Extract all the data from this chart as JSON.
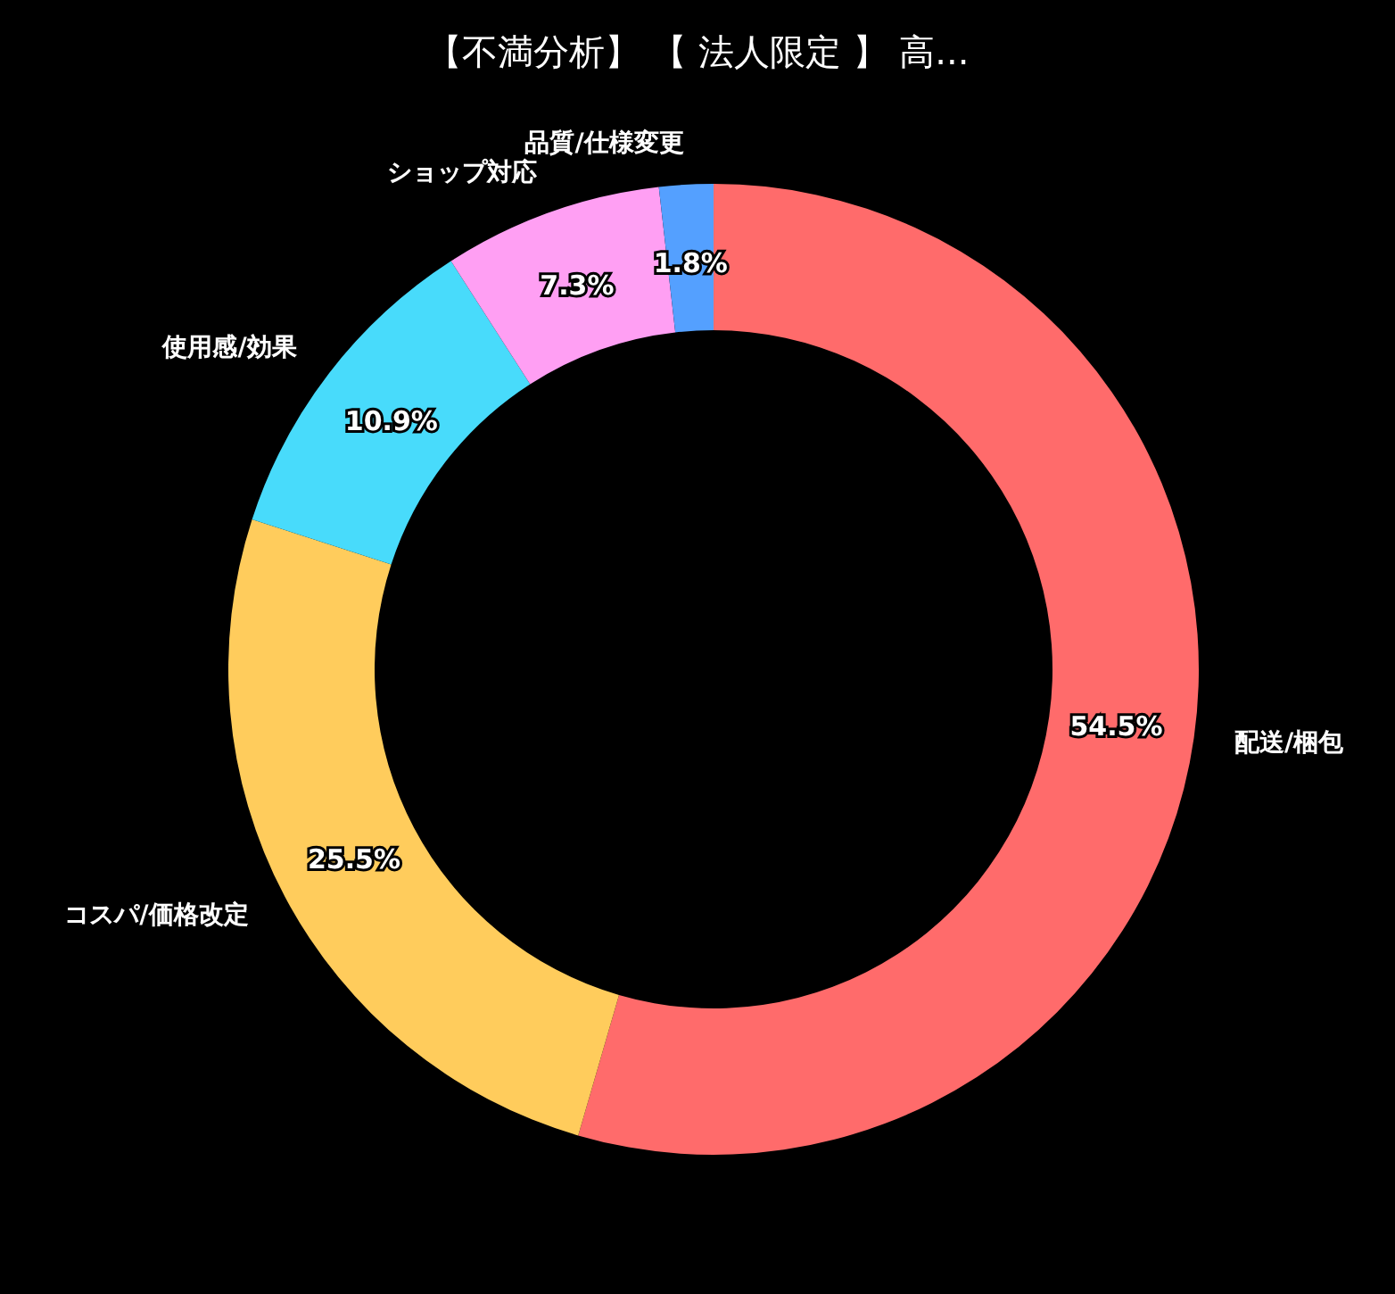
{
  "chart_data": {
    "type": "donut",
    "title": "【不満分析】 【 法人限定 】 高...",
    "categories": [
      "配送/梱包",
      "コスパ/価格改定",
      "使用感/効果",
      "ショップ対応",
      "品質/仕様変更"
    ],
    "values": [
      54.5,
      25.5,
      10.9,
      7.3,
      1.8
    ],
    "colors": [
      "#ff6b6b",
      "#ffcc5c",
      "#48dbfb",
      "#ff9ff3",
      "#54a0ff"
    ],
    "value_labels": [
      "54.5%",
      "25.5%",
      "10.9%",
      "7.3%",
      "1.8%"
    ]
  }
}
